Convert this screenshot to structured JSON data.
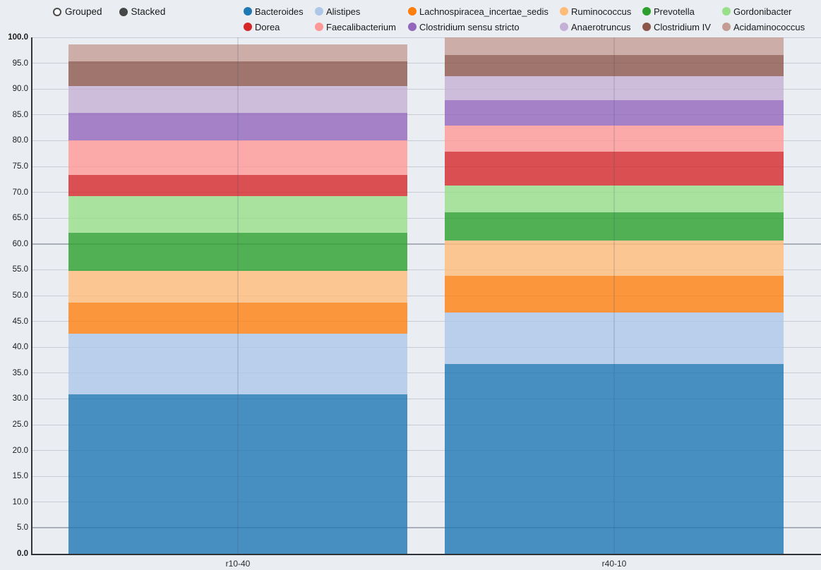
{
  "controls": {
    "options": [
      {
        "label": "Grouped",
        "selected": false
      },
      {
        "label": "Stacked",
        "selected": true
      }
    ]
  },
  "chart_data": {
    "type": "bar",
    "mode": "stacked",
    "title": "",
    "xlabel": "",
    "ylabel": "",
    "categories": [
      "r10-40",
      "r40-10"
    ],
    "series": [
      {
        "name": "Bacteroides",
        "color": "#1f77b4",
        "values": [
          30.9,
          36.7
        ]
      },
      {
        "name": "Alistipes",
        "color": "#aec7e8",
        "values": [
          11.7,
          10.0
        ]
      },
      {
        "name": "Lachnospiracea_incertae_sedis",
        "color": "#ff7f0e",
        "values": [
          6.1,
          7.1
        ]
      },
      {
        "name": "Ruminococcus",
        "color": "#ffbb78",
        "values": [
          6.1,
          6.8
        ]
      },
      {
        "name": "Prevotella",
        "color": "#2ca02c",
        "values": [
          7.3,
          5.5
        ]
      },
      {
        "name": "Gordonibacter",
        "color": "#98df8a",
        "values": [
          7.1,
          5.2
        ]
      },
      {
        "name": "Dorea",
        "color": "#d62728",
        "values": [
          4.2,
          6.6
        ]
      },
      {
        "name": "Faecalibacterium",
        "color": "#ff9896",
        "values": [
          6.6,
          5.0
        ]
      },
      {
        "name": "Clostridium sensu stricto",
        "color": "#9467bd",
        "values": [
          5.4,
          5.0
        ]
      },
      {
        "name": "Anaerotruncus",
        "color": "#c5b0d5",
        "values": [
          5.2,
          4.6
        ]
      },
      {
        "name": "Clostridium IV",
        "color": "#8c564b",
        "values": [
          4.7,
          4.1
        ]
      },
      {
        "name": "Acidaminococcus",
        "color": "#c49c94",
        "values": [
          3.4,
          3.4
        ]
      }
    ],
    "ylim": [
      0,
      100
    ],
    "ytick_step": 5,
    "ytick_decimals": 1,
    "bold_yticks": [
      0,
      100
    ],
    "emphasized_gridlines": [
      60,
      5
    ],
    "bar_opacity": 0.8,
    "grid": true,
    "legend_position": "top"
  }
}
